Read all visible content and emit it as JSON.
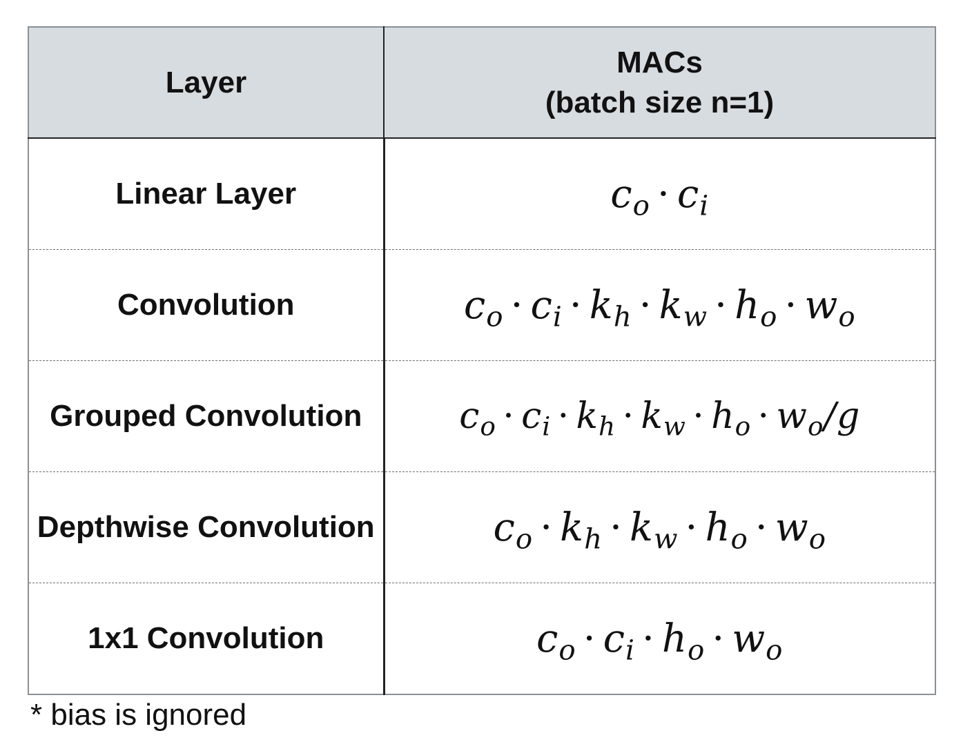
{
  "header": {
    "layer": "Layer",
    "macs_line1": "MACs",
    "macs_line2": "(batch size n=1)"
  },
  "rows": [
    {
      "layer": "Linear Layer",
      "formula": [
        [
          "c",
          "o"
        ],
        [
          "c",
          "i"
        ]
      ],
      "suffix": ""
    },
    {
      "layer": "Convolution",
      "formula": [
        [
          "c",
          "o"
        ],
        [
          "c",
          "i"
        ],
        [
          "k",
          "h"
        ],
        [
          "k",
          "w"
        ],
        [
          "h",
          "o"
        ],
        [
          "w",
          "o"
        ]
      ],
      "suffix": ""
    },
    {
      "layer": "Grouped Convolution",
      "formula": [
        [
          "c",
          "o"
        ],
        [
          "c",
          "i"
        ],
        [
          "k",
          "h"
        ],
        [
          "k",
          "w"
        ],
        [
          "h",
          "o"
        ],
        [
          "w",
          "o"
        ]
      ],
      "suffix": "/g"
    },
    {
      "layer": "Depthwise Convolution",
      "formula": [
        [
          "c",
          "o"
        ],
        [
          "k",
          "h"
        ],
        [
          "k",
          "w"
        ],
        [
          "h",
          "o"
        ],
        [
          "w",
          "o"
        ]
      ],
      "suffix": ""
    },
    {
      "layer": "1x1 Convolution",
      "formula": [
        [
          "c",
          "o"
        ],
        [
          "c",
          "i"
        ],
        [
          "h",
          "o"
        ],
        [
          "w",
          "o"
        ]
      ],
      "suffix": ""
    }
  ],
  "footnote": "* bias is ignored"
}
